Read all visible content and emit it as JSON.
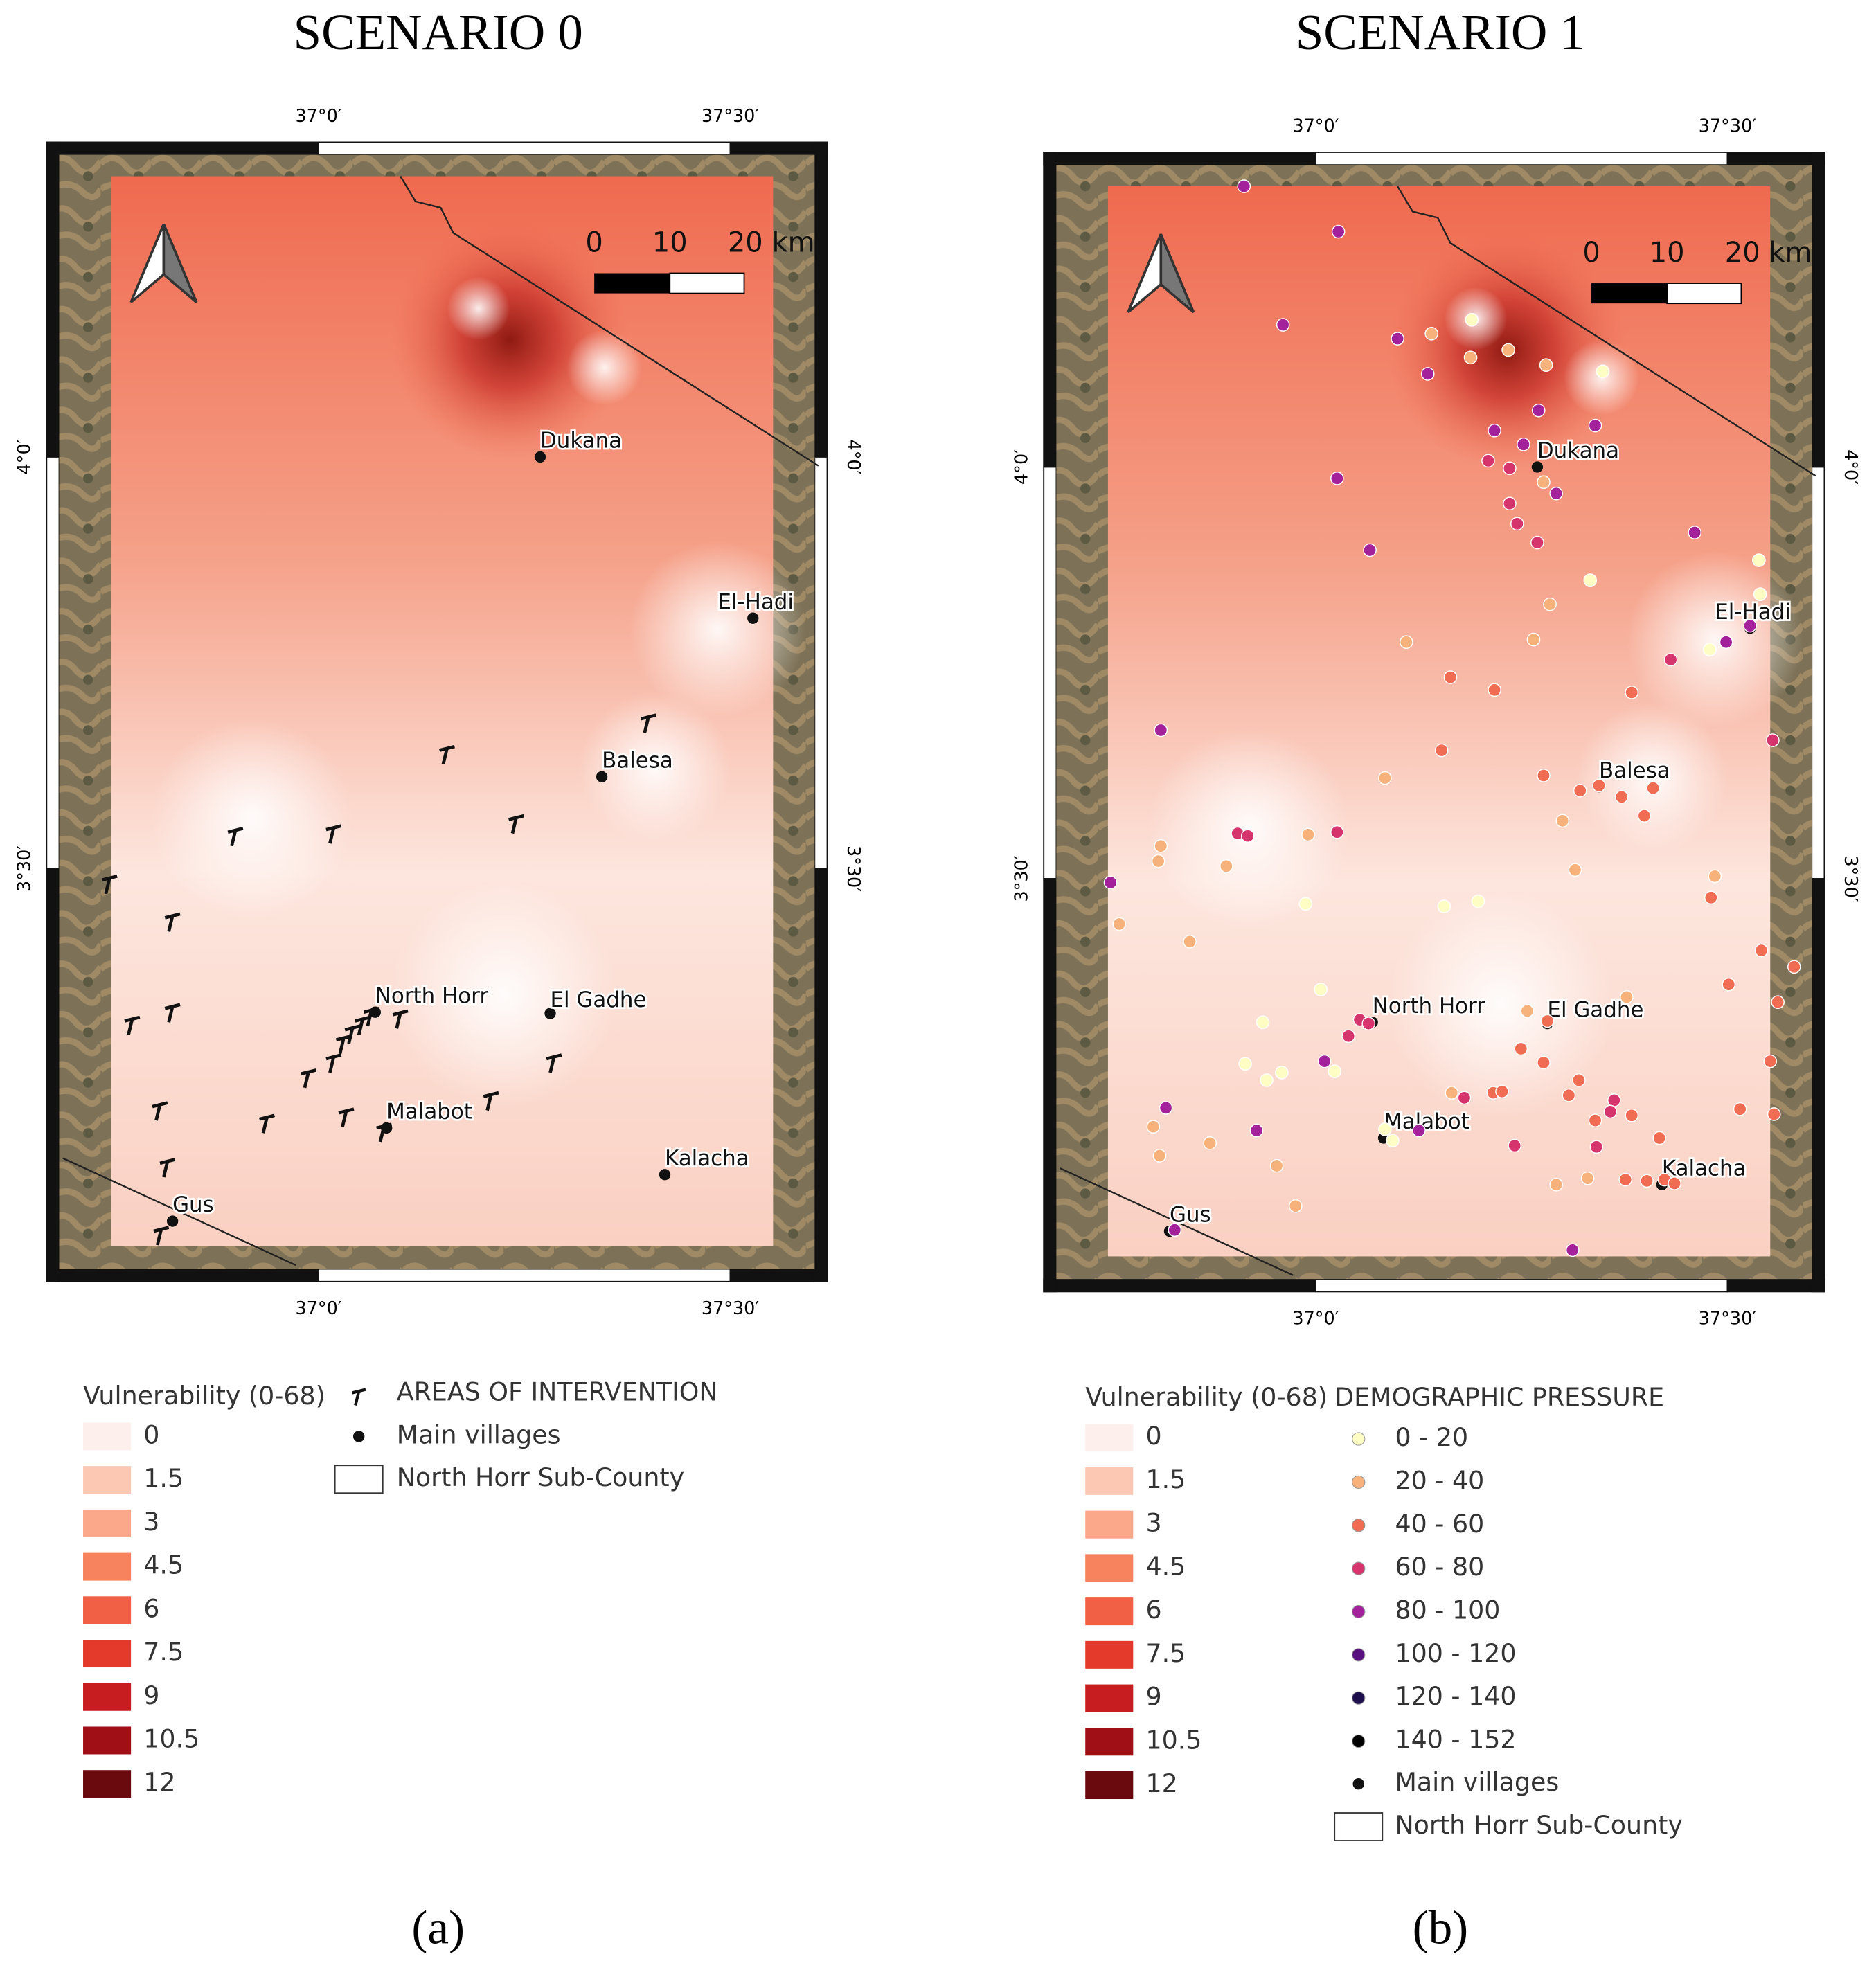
{
  "panels": [
    {
      "title": "SCENARIO 0",
      "label": "(a)",
      "overlay_legend": {
        "title": "AREAS OF INTERVENTION",
        "items": [
          "Main villages",
          "North Horr Sub-County"
        ]
      }
    },
    {
      "title": "SCENARIO 1",
      "label": "(b)",
      "overlay_legend": {
        "title": "DEMOGRAPHIC PRESSURE",
        "classes": [
          "0 - 20",
          "20 - 40",
          "40 - 60",
          "60 - 80",
          "80 - 100",
          "100 - 120",
          "120 - 140",
          "140 - 152"
        ],
        "colors": [
          "#fdfdc4",
          "#f7b27c",
          "#f06c52",
          "#d5346c",
          "#a3219b",
          "#5a1180",
          "#1c0f4b",
          "#000000"
        ],
        "items": [
          "Main villages",
          "North Horr Sub-County"
        ]
      }
    }
  ],
  "map": {
    "lon_labels": [
      "37°0′",
      "37°30′"
    ],
    "lat_labels": [
      "4°0′",
      "3°30′"
    ],
    "scale_bar": [
      "0",
      "10",
      "20 km"
    ],
    "villages": [
      "Dukana",
      "El-Hadi",
      "Balesa",
      "North Horr",
      "El Gadhe",
      "Malabot",
      "Kalacha",
      "Gus"
    ]
  },
  "vulnerability_legend": {
    "title": "Vulnerability (0-68)",
    "classes": [
      "0",
      "1.5",
      "3",
      "4.5",
      "6",
      "7.5",
      "9",
      "10.5",
      "12"
    ],
    "colors": [
      "#fdf0ec",
      "#fcc8b4",
      "#fba78a",
      "#f7825e",
      "#f15f44",
      "#e43a2c",
      "#c81d20",
      "#a00f16",
      "#6a0a0e"
    ]
  }
}
